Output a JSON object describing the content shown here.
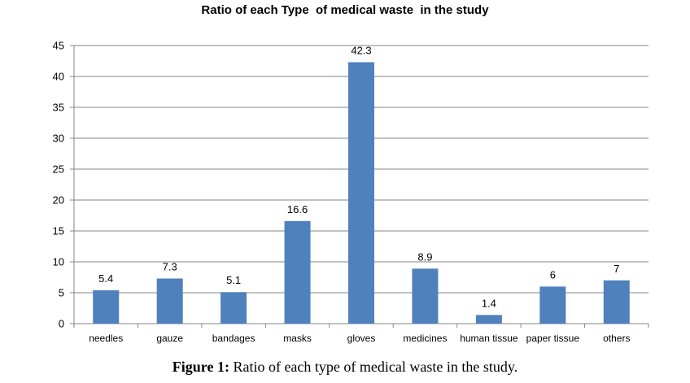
{
  "chart_data": {
    "type": "bar",
    "title": "Ratio of each Type  of medical waste  in the study",
    "categories": [
      "needles",
      "gauze",
      "bandages",
      "masks",
      "gloves",
      "medicines",
      "human tissue",
      "paper tissue",
      "others"
    ],
    "values": [
      5.4,
      7.3,
      5.1,
      16.6,
      42.3,
      8.9,
      1.4,
      6,
      7
    ],
    "data_labels": [
      "5.4",
      "7.3",
      "5.1",
      "16.6",
      "42.3",
      "8.9",
      "1.4",
      "6",
      "7"
    ],
    "ylim": [
      0,
      45
    ],
    "yticks": [
      0,
      5,
      10,
      15,
      20,
      25,
      30,
      35,
      40,
      45
    ],
    "grid": true,
    "legend": "none",
    "bar_color": "#4f81bd",
    "grid_color": "#868686"
  },
  "caption": {
    "label": "Figure 1:",
    "text": " Ratio of each type of medical waste in the study."
  }
}
